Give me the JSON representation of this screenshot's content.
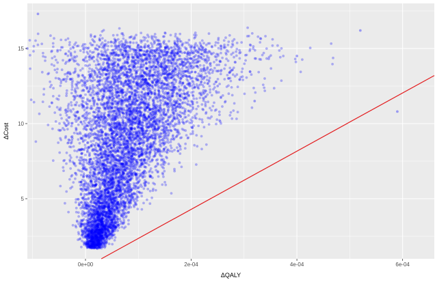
{
  "chart_data": {
    "type": "scatter",
    "title": "",
    "xlabel": "ΔQALY",
    "ylabel": "ΔCost",
    "xlim": [
      -0.00011,
      0.00066
    ],
    "ylim": [
      1.0,
      18.0
    ],
    "x_ticks": [
      0,
      0.0002,
      0.0004,
      0.0006
    ],
    "x_tick_labels": [
      "0e+00",
      "2e-04",
      "4e-04",
      "6e-04"
    ],
    "y_ticks": [
      5,
      10,
      15
    ],
    "y_tick_labels": [
      "5",
      "10",
      "15"
    ],
    "grid": true,
    "legend": "none",
    "colors": {
      "points": "#0000ff",
      "threshold_line": "#e31a1c",
      "panel_background": "#ebebeb",
      "grid": "#ffffff"
    },
    "series": [
      {
        "kind": "points",
        "approx_count": 7000,
        "values_sample": [
          {
            "x": 0.0,
            "y": 2.0
          },
          {
            "x": 1e-05,
            "y": 2.5
          },
          {
            "x": 3e-05,
            "y": 4.0
          },
          {
            "x": 5e-05,
            "y": 6.0
          },
          {
            "x": 8e-05,
            "y": 8.5
          },
          {
            "x": 0.0001,
            "y": 10.5
          },
          {
            "x": 0.00013,
            "y": 12.0
          },
          {
            "x": 0.00018,
            "y": 13.0
          },
          {
            "x": 0.00025,
            "y": 12.5
          },
          {
            "x": 0.00032,
            "y": 11.5
          },
          {
            "x": 0.0004,
            "y": 14.5
          },
          {
            "x": 0.00052,
            "y": 16.2
          },
          {
            "x": 0.00059,
            "y": 10.8
          },
          {
            "x": -9e-05,
            "y": 17.3
          },
          {
            "x": -0.00011,
            "y": 15.0
          }
        ]
      },
      {
        "kind": "line",
        "from": {
          "x": 3e-05,
          "y": 1.0
        },
        "to": {
          "x": 0.00066,
          "y": 13.2
        }
      }
    ]
  }
}
